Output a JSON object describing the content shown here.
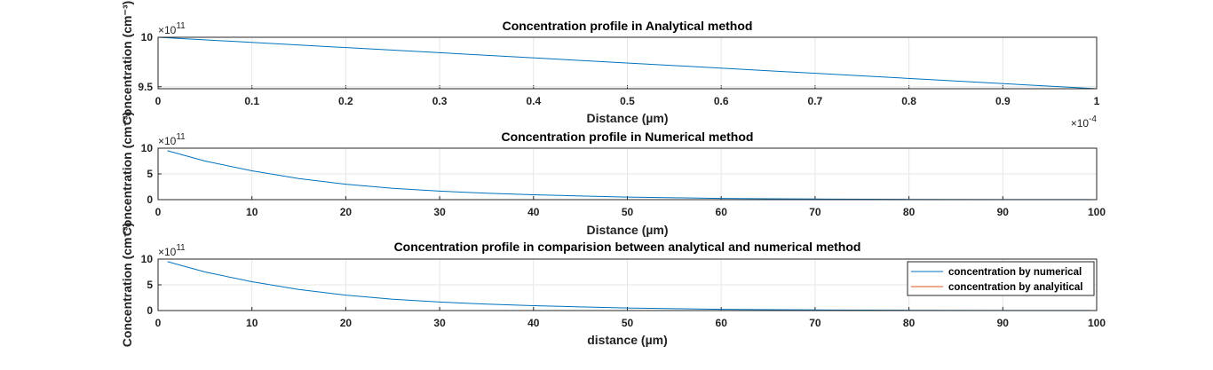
{
  "chart_data": [
    {
      "type": "line",
      "title": "Concentration profile in Analytical method",
      "xlabel": "Distance (µm)",
      "ylabel": "Concentration (cm⁻³)",
      "xlim": [
        0,
        0.0001
      ],
      "ylim": [
        948000000000.0,
        1000000000000.0
      ],
      "x_ticks": [
        "0",
        "0.1",
        "0.2",
        "0.3",
        "0.4",
        "0.5",
        "0.6",
        "0.7",
        "0.8",
        "0.9",
        "1"
      ],
      "x_multiplier": "×10",
      "x_multiplier_exp": "-4",
      "y_ticks": [
        {
          "value": 1000000000000.0,
          "label": "10"
        },
        {
          "value": 950000000000.0,
          "label": "9.5"
        }
      ],
      "y_multiplier": "×10",
      "y_multiplier_exp": "11",
      "grid": true,
      "series": [
        {
          "color": "#0072BD",
          "x": [
            0,
            0.0001
          ],
          "y": [
            1000000000000.0,
            948000000000.0
          ]
        }
      ]
    },
    {
      "type": "line",
      "title": "Concentration profile in Numerical method",
      "xlabel": "Distance (µm)",
      "ylabel": "Concentration (cm⁻³)",
      "xlim": [
        0,
        100
      ],
      "ylim": [
        0,
        1000000000000.0
      ],
      "x_ticks": [
        "0",
        "10",
        "20",
        "30",
        "40",
        "50",
        "60",
        "70",
        "80",
        "90",
        "100"
      ],
      "y_ticks": [
        {
          "value": 1000000000000.0,
          "label": "10"
        },
        {
          "value": 500000000000.0,
          "label": "5"
        },
        {
          "value": 0,
          "label": "0"
        }
      ],
      "y_multiplier": "×10",
      "y_multiplier_exp": "11",
      "grid": true,
      "series": [
        {
          "color": "#0072BD",
          "x": [
            1,
            5,
            10,
            15,
            20,
            25,
            30,
            35,
            40,
            45,
            50,
            55,
            60,
            65,
            70,
            71,
            80,
            90,
            99,
            100
          ],
          "y": [
            950000000000.0,
            750000000000.0,
            560000000000.0,
            410000000000.0,
            300000000000.0,
            220000000000.0,
            165000000000.0,
            125000000000.0,
            95000000000.0,
            70000000000.0,
            50000000000.0,
            36000000000.0,
            25000000000.0,
            18000000000.0,
            12000000000.0,
            11000000000.0,
            5000000000.0,
            2000000000.0,
            1000000000.0,
            0
          ]
        }
      ]
    },
    {
      "type": "line",
      "title": "Concentration profile in comparision between analytical and numerical method",
      "xlabel": "distance (µm)",
      "ylabel": "Concentration (cm⁻³)",
      "xlim": [
        0,
        100
      ],
      "ylim": [
        0,
        1000000000000.0
      ],
      "x_ticks": [
        "0",
        "10",
        "20",
        "30",
        "40",
        "50",
        "60",
        "70",
        "80",
        "90",
        "100"
      ],
      "y_ticks": [
        {
          "value": 1000000000000.0,
          "label": "10"
        },
        {
          "value": 500000000000.0,
          "label": "5"
        },
        {
          "value": 0,
          "label": "0"
        }
      ],
      "y_multiplier": "×10",
      "y_multiplier_exp": "11",
      "grid": true,
      "legend_position": "top-right",
      "series": [
        {
          "name": "concentration by numerical",
          "color": "#0072BD",
          "x": [
            1,
            5,
            10,
            15,
            20,
            25,
            30,
            35,
            40,
            45,
            50,
            55,
            60,
            65,
            70,
            71,
            80,
            90,
            99,
            100
          ],
          "y": [
            950000000000.0,
            750000000000.0,
            560000000000.0,
            410000000000.0,
            300000000000.0,
            220000000000.0,
            165000000000.0,
            125000000000.0,
            95000000000.0,
            70000000000.0,
            50000000000.0,
            36000000000.0,
            25000000000.0,
            18000000000.0,
            12000000000.0,
            11000000000.0,
            5000000000.0,
            2000000000.0,
            1000000000.0,
            0
          ]
        },
        {
          "name": "concentration by analyitical",
          "color": "#D95319",
          "x": [],
          "y": []
        }
      ]
    }
  ]
}
